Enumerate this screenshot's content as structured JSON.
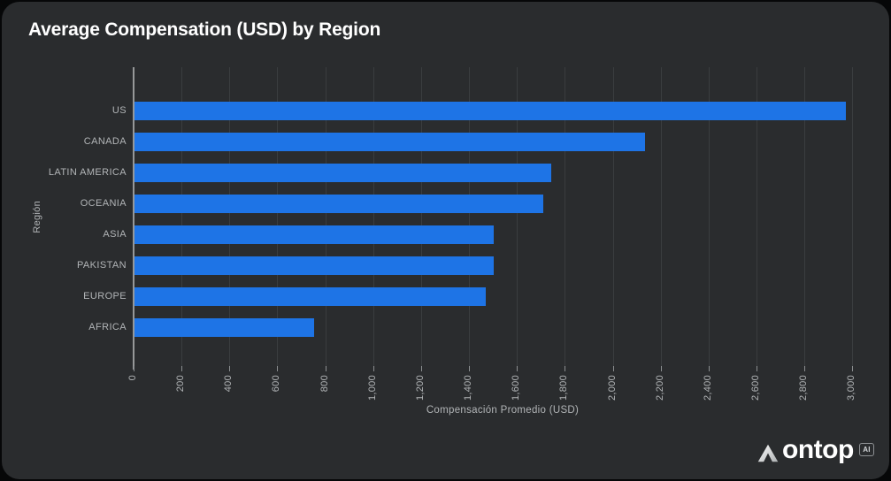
{
  "chart_data": {
    "type": "bar",
    "orientation": "horizontal",
    "title": "Average Compensation (USD) by Region",
    "categories": [
      "US",
      "CANADA",
      "LATIN AMERICA",
      "OCEANIA",
      "ASIA",
      "PAKISTAN",
      "EUROPE",
      "AFRICA"
    ],
    "values": [
      2970,
      2130,
      1740,
      1705,
      1500,
      1500,
      1465,
      750
    ],
    "xlabel": "Compensación Promedio (USD)",
    "ylabel": "Región",
    "xlim": [
      0,
      3080
    ],
    "xtick_values": [
      0,
      200,
      400,
      600,
      800,
      1000,
      1200,
      1400,
      1600,
      1800,
      2000,
      2200,
      2400,
      2600,
      2800,
      3000
    ],
    "xtick_labels": [
      "0",
      "200",
      "400",
      "600",
      "800",
      "1,000",
      "1,200",
      "1,400",
      "1,600",
      "1,800",
      "2,000",
      "2,200",
      "2,400",
      "2,600",
      "2,800",
      "3,000"
    ],
    "grid": true,
    "legend": false,
    "bar_color": "#1e74e6"
  },
  "colors": {
    "page_bg": "#060708",
    "card_bg": "#2a2c2e",
    "bar": "#1e74e6",
    "gridline": "#3a3d3f",
    "axis_line": "#969899",
    "label_text": "#b2b5b7",
    "title_text": "#ffffff"
  },
  "logo": {
    "brand": "ontop",
    "badge": "AI"
  }
}
